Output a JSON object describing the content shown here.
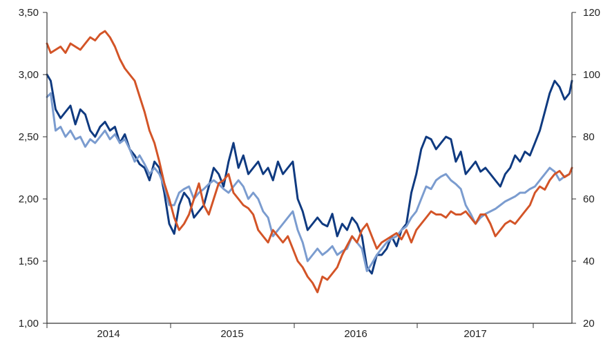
{
  "chart_data": {
    "type": "line",
    "title": "",
    "xlabel": "",
    "ylabel": "",
    "ylabel_right": "",
    "grid": false,
    "legend": "none",
    "x_range": [
      2013.55,
      2017.8
    ],
    "x_ticks": [
      "2014",
      "2015",
      "2016",
      "2017"
    ],
    "ylim_left": [
      1.0,
      3.5
    ],
    "yticks_left": [
      "1,00",
      "1,50",
      "2,00",
      "2,50",
      "3,00",
      "3,50"
    ],
    "ylim_right": [
      20,
      120
    ],
    "yticks_right": [
      "20",
      "40",
      "60",
      "80",
      "100",
      "120"
    ],
    "series": [
      {
        "color": "#0f3a80",
        "axis": "left",
        "x": [
          2013.55,
          2013.58,
          2013.62,
          2013.66,
          2013.7,
          2013.74,
          2013.78,
          2013.82,
          2013.86,
          2013.9,
          2013.94,
          2013.98,
          2014.02,
          2014.06,
          2014.1,
          2014.14,
          2014.18,
          2014.22,
          2014.26,
          2014.3,
          2014.34,
          2014.38,
          2014.42,
          2014.46,
          2014.5,
          2014.54,
          2014.58,
          2014.62,
          2014.66,
          2014.7,
          2014.74,
          2014.78,
          2014.82,
          2014.86,
          2014.9,
          2014.94,
          2014.98,
          2015.02,
          2015.06,
          2015.1,
          2015.14,
          2015.18,
          2015.22,
          2015.26,
          2015.3,
          2015.34,
          2015.38,
          2015.42,
          2015.46,
          2015.5,
          2015.54,
          2015.58,
          2015.62,
          2015.66,
          2015.7,
          2015.74,
          2015.78,
          2015.82,
          2015.86,
          2015.9,
          2015.94,
          2015.98,
          2016.02,
          2016.06,
          2016.1,
          2016.14,
          2016.18,
          2016.22,
          2016.26,
          2016.3,
          2016.34,
          2016.38,
          2016.42,
          2016.46,
          2016.5,
          2016.54,
          2016.58,
          2016.62,
          2016.66,
          2016.7,
          2016.74,
          2016.78,
          2016.82,
          2016.86,
          2016.9,
          2016.94,
          2016.98,
          2017.02,
          2017.06,
          2017.1,
          2017.14,
          2017.18,
          2017.22,
          2017.26,
          2017.3,
          2017.34,
          2017.38,
          2017.42,
          2017.46,
          2017.5,
          2017.54,
          2017.58,
          2017.62,
          2017.66,
          2017.7,
          2017.74,
          2017.78,
          2017.8
        ],
        "y": [
          3.0,
          2.95,
          2.72,
          2.65,
          2.7,
          2.75,
          2.6,
          2.72,
          2.68,
          2.55,
          2.5,
          2.58,
          2.62,
          2.55,
          2.58,
          2.45,
          2.52,
          2.4,
          2.35,
          2.28,
          2.25,
          2.15,
          2.3,
          2.25,
          2.05,
          1.8,
          1.72,
          1.95,
          2.05,
          2.0,
          1.85,
          1.9,
          1.95,
          2.1,
          2.25,
          2.2,
          2.1,
          2.3,
          2.45,
          2.25,
          2.35,
          2.2,
          2.25,
          2.3,
          2.2,
          2.25,
          2.15,
          2.3,
          2.2,
          2.25,
          2.3,
          2.0,
          1.9,
          1.75,
          1.8,
          1.85,
          1.8,
          1.78,
          1.88,
          1.7,
          1.8,
          1.75,
          1.85,
          1.8,
          1.7,
          1.45,
          1.4,
          1.55,
          1.55,
          1.6,
          1.7,
          1.62,
          1.75,
          1.8,
          2.05,
          2.2,
          2.4,
          2.5,
          2.48,
          2.4,
          2.45,
          2.5,
          2.48,
          2.3,
          2.38,
          2.2,
          2.25,
          2.3,
          2.22,
          2.25,
          2.2,
          2.15,
          2.1,
          2.2,
          2.25,
          2.35,
          2.3,
          2.38,
          2.35,
          2.45,
          2.55,
          2.7,
          2.85,
          2.95,
          2.9,
          2.8,
          2.85,
          2.95
        ]
      },
      {
        "color": "#7b9ccf",
        "axis": "left",
        "x": [
          2013.55,
          2013.58,
          2013.62,
          2013.66,
          2013.7,
          2013.74,
          2013.78,
          2013.82,
          2013.86,
          2013.9,
          2013.94,
          2013.98,
          2014.02,
          2014.06,
          2014.1,
          2014.14,
          2014.18,
          2014.22,
          2014.26,
          2014.3,
          2014.34,
          2014.38,
          2014.42,
          2014.46,
          2014.5,
          2014.54,
          2014.58,
          2014.62,
          2014.66,
          2014.7,
          2014.74,
          2014.78,
          2014.82,
          2014.86,
          2014.9,
          2014.94,
          2014.98,
          2015.02,
          2015.06,
          2015.1,
          2015.14,
          2015.18,
          2015.22,
          2015.26,
          2015.3,
          2015.34,
          2015.38,
          2015.42,
          2015.46,
          2015.5,
          2015.54,
          2015.58,
          2015.62,
          2015.66,
          2015.7,
          2015.74,
          2015.78,
          2015.82,
          2015.86,
          2015.9,
          2015.94,
          2015.98,
          2016.02,
          2016.06,
          2016.1,
          2016.14,
          2016.18,
          2016.22,
          2016.26,
          2016.3,
          2016.34,
          2016.38,
          2016.42,
          2016.46,
          2016.5,
          2016.54,
          2016.58,
          2016.62,
          2016.66,
          2016.7,
          2016.74,
          2016.78,
          2016.82,
          2016.86,
          2016.9,
          2016.94,
          2016.98,
          2017.02,
          2017.06,
          2017.1,
          2017.14,
          2017.18,
          2017.22,
          2017.26,
          2017.3,
          2017.34,
          2017.38,
          2017.42,
          2017.46,
          2017.5,
          2017.54,
          2017.58,
          2017.62,
          2017.66,
          2017.7,
          2017.74,
          2017.78,
          2017.8
        ],
        "y": [
          2.82,
          2.85,
          2.55,
          2.58,
          2.5,
          2.55,
          2.48,
          2.5,
          2.42,
          2.48,
          2.45,
          2.5,
          2.55,
          2.48,
          2.52,
          2.45,
          2.48,
          2.4,
          2.3,
          2.35,
          2.28,
          2.2,
          2.25,
          2.2,
          2.1,
          1.95,
          1.95,
          2.05,
          2.08,
          2.1,
          2.0,
          2.05,
          2.08,
          2.12,
          2.15,
          2.12,
          2.08,
          2.05,
          2.1,
          2.15,
          2.1,
          2.0,
          2.05,
          2.0,
          1.9,
          1.85,
          1.7,
          1.75,
          1.8,
          1.85,
          1.9,
          1.75,
          1.65,
          1.5,
          1.55,
          1.6,
          1.55,
          1.58,
          1.62,
          1.55,
          1.58,
          1.6,
          1.7,
          1.65,
          1.6,
          1.42,
          1.48,
          1.55,
          1.6,
          1.65,
          1.68,
          1.7,
          1.75,
          1.78,
          1.85,
          1.9,
          2.0,
          2.1,
          2.08,
          2.15,
          2.18,
          2.2,
          2.15,
          2.12,
          2.08,
          1.95,
          1.88,
          1.8,
          1.85,
          1.88,
          1.9,
          1.92,
          1.95,
          1.98,
          2.0,
          2.02,
          2.05,
          2.05,
          2.08,
          2.1,
          2.15,
          2.2,
          2.25,
          2.22,
          2.15,
          2.18,
          2.2,
          2.25
        ]
      },
      {
        "color": "#d35427",
        "axis": "right",
        "x": [
          2013.55,
          2013.58,
          2013.62,
          2013.66,
          2013.7,
          2013.74,
          2013.78,
          2013.82,
          2013.86,
          2013.9,
          2013.94,
          2013.98,
          2014.02,
          2014.06,
          2014.1,
          2014.14,
          2014.18,
          2014.22,
          2014.26,
          2014.3,
          2014.34,
          2014.38,
          2014.42,
          2014.46,
          2014.5,
          2014.54,
          2014.58,
          2014.62,
          2014.66,
          2014.7,
          2014.74,
          2014.78,
          2014.82,
          2014.86,
          2014.9,
          2014.94,
          2014.98,
          2015.02,
          2015.06,
          2015.1,
          2015.14,
          2015.18,
          2015.22,
          2015.26,
          2015.3,
          2015.34,
          2015.38,
          2015.42,
          2015.46,
          2015.5,
          2015.54,
          2015.58,
          2015.62,
          2015.66,
          2015.7,
          2015.74,
          2015.78,
          2015.82,
          2015.86,
          2015.9,
          2015.94,
          2015.98,
          2016.02,
          2016.06,
          2016.1,
          2016.14,
          2016.18,
          2016.22,
          2016.26,
          2016.3,
          2016.34,
          2016.38,
          2016.42,
          2016.46,
          2016.5,
          2016.54,
          2016.58,
          2016.62,
          2016.66,
          2016.7,
          2016.74,
          2016.78,
          2016.82,
          2016.86,
          2016.9,
          2016.94,
          2016.98,
          2017.02,
          2017.06,
          2017.1,
          2017.14,
          2017.18,
          2017.22,
          2017.26,
          2017.3,
          2017.34,
          2017.38,
          2017.42,
          2017.46,
          2017.5,
          2017.54,
          2017.58,
          2017.62,
          2017.66,
          2017.7,
          2017.74,
          2017.78,
          2017.8
        ],
        "y": [
          110,
          107,
          108,
          109,
          107,
          110,
          109,
          108,
          110,
          112,
          111,
          113,
          114,
          112,
          109,
          105,
          102,
          100,
          98,
          93,
          88,
          82,
          78,
          72,
          65,
          60,
          54,
          50,
          52,
          55,
          60,
          65,
          58,
          55,
          60,
          65,
          66,
          68,
          62,
          60,
          58,
          57,
          55,
          50,
          48,
          46,
          50,
          48,
          46,
          48,
          44,
          40,
          38,
          35,
          33,
          30,
          35,
          34,
          36,
          38,
          42,
          45,
          48,
          46,
          50,
          52,
          48,
          44,
          46,
          47,
          48,
          49,
          47,
          50,
          46,
          50,
          52,
          54,
          56,
          55,
          55,
          54,
          56,
          55,
          55,
          56,
          54,
          52,
          55,
          55,
          52,
          48,
          50,
          52,
          53,
          52,
          54,
          56,
          58,
          62,
          64,
          63,
          66,
          68,
          69,
          67,
          68,
          70
        ]
      }
    ]
  }
}
